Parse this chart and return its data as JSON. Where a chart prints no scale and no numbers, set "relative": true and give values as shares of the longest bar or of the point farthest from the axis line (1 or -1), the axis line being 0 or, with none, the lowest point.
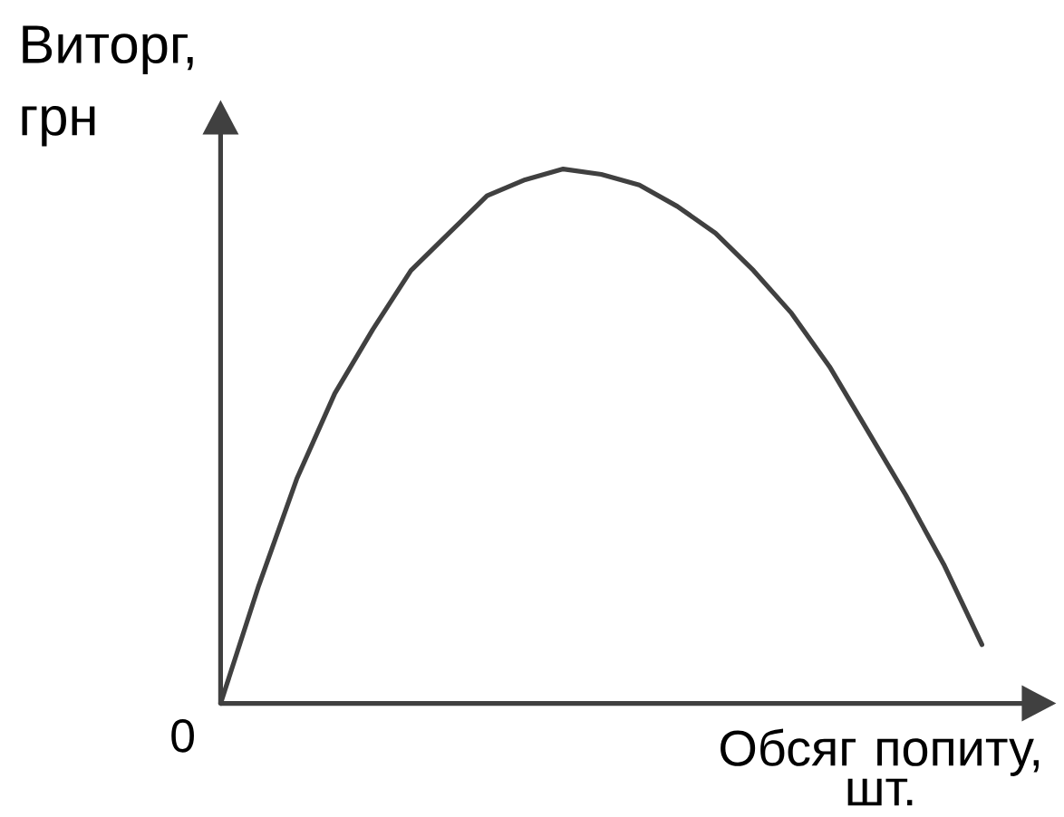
{
  "chart_data": {
    "type": "line",
    "xlabel": "Обсяг попиту, шт.",
    "ylabel": "Виторг, грн",
    "annotations": [
      "0"
    ],
    "relative": true,
    "categories": [
      null,
      null,
      null,
      null,
      null,
      null,
      null,
      null,
      null,
      null,
      null,
      null,
      null,
      null,
      null,
      null,
      null,
      null,
      null,
      null,
      null
    ],
    "values": [
      0,
      0.22,
      0.42,
      0.58,
      0.7,
      0.81,
      0.88,
      0.95,
      0.98,
      1.0,
      0.99,
      0.97,
      0.93,
      0.88,
      0.81,
      0.73,
      0.63,
      0.51,
      0.39,
      0.26,
      0.11
    ],
    "color": "#404040"
  }
}
